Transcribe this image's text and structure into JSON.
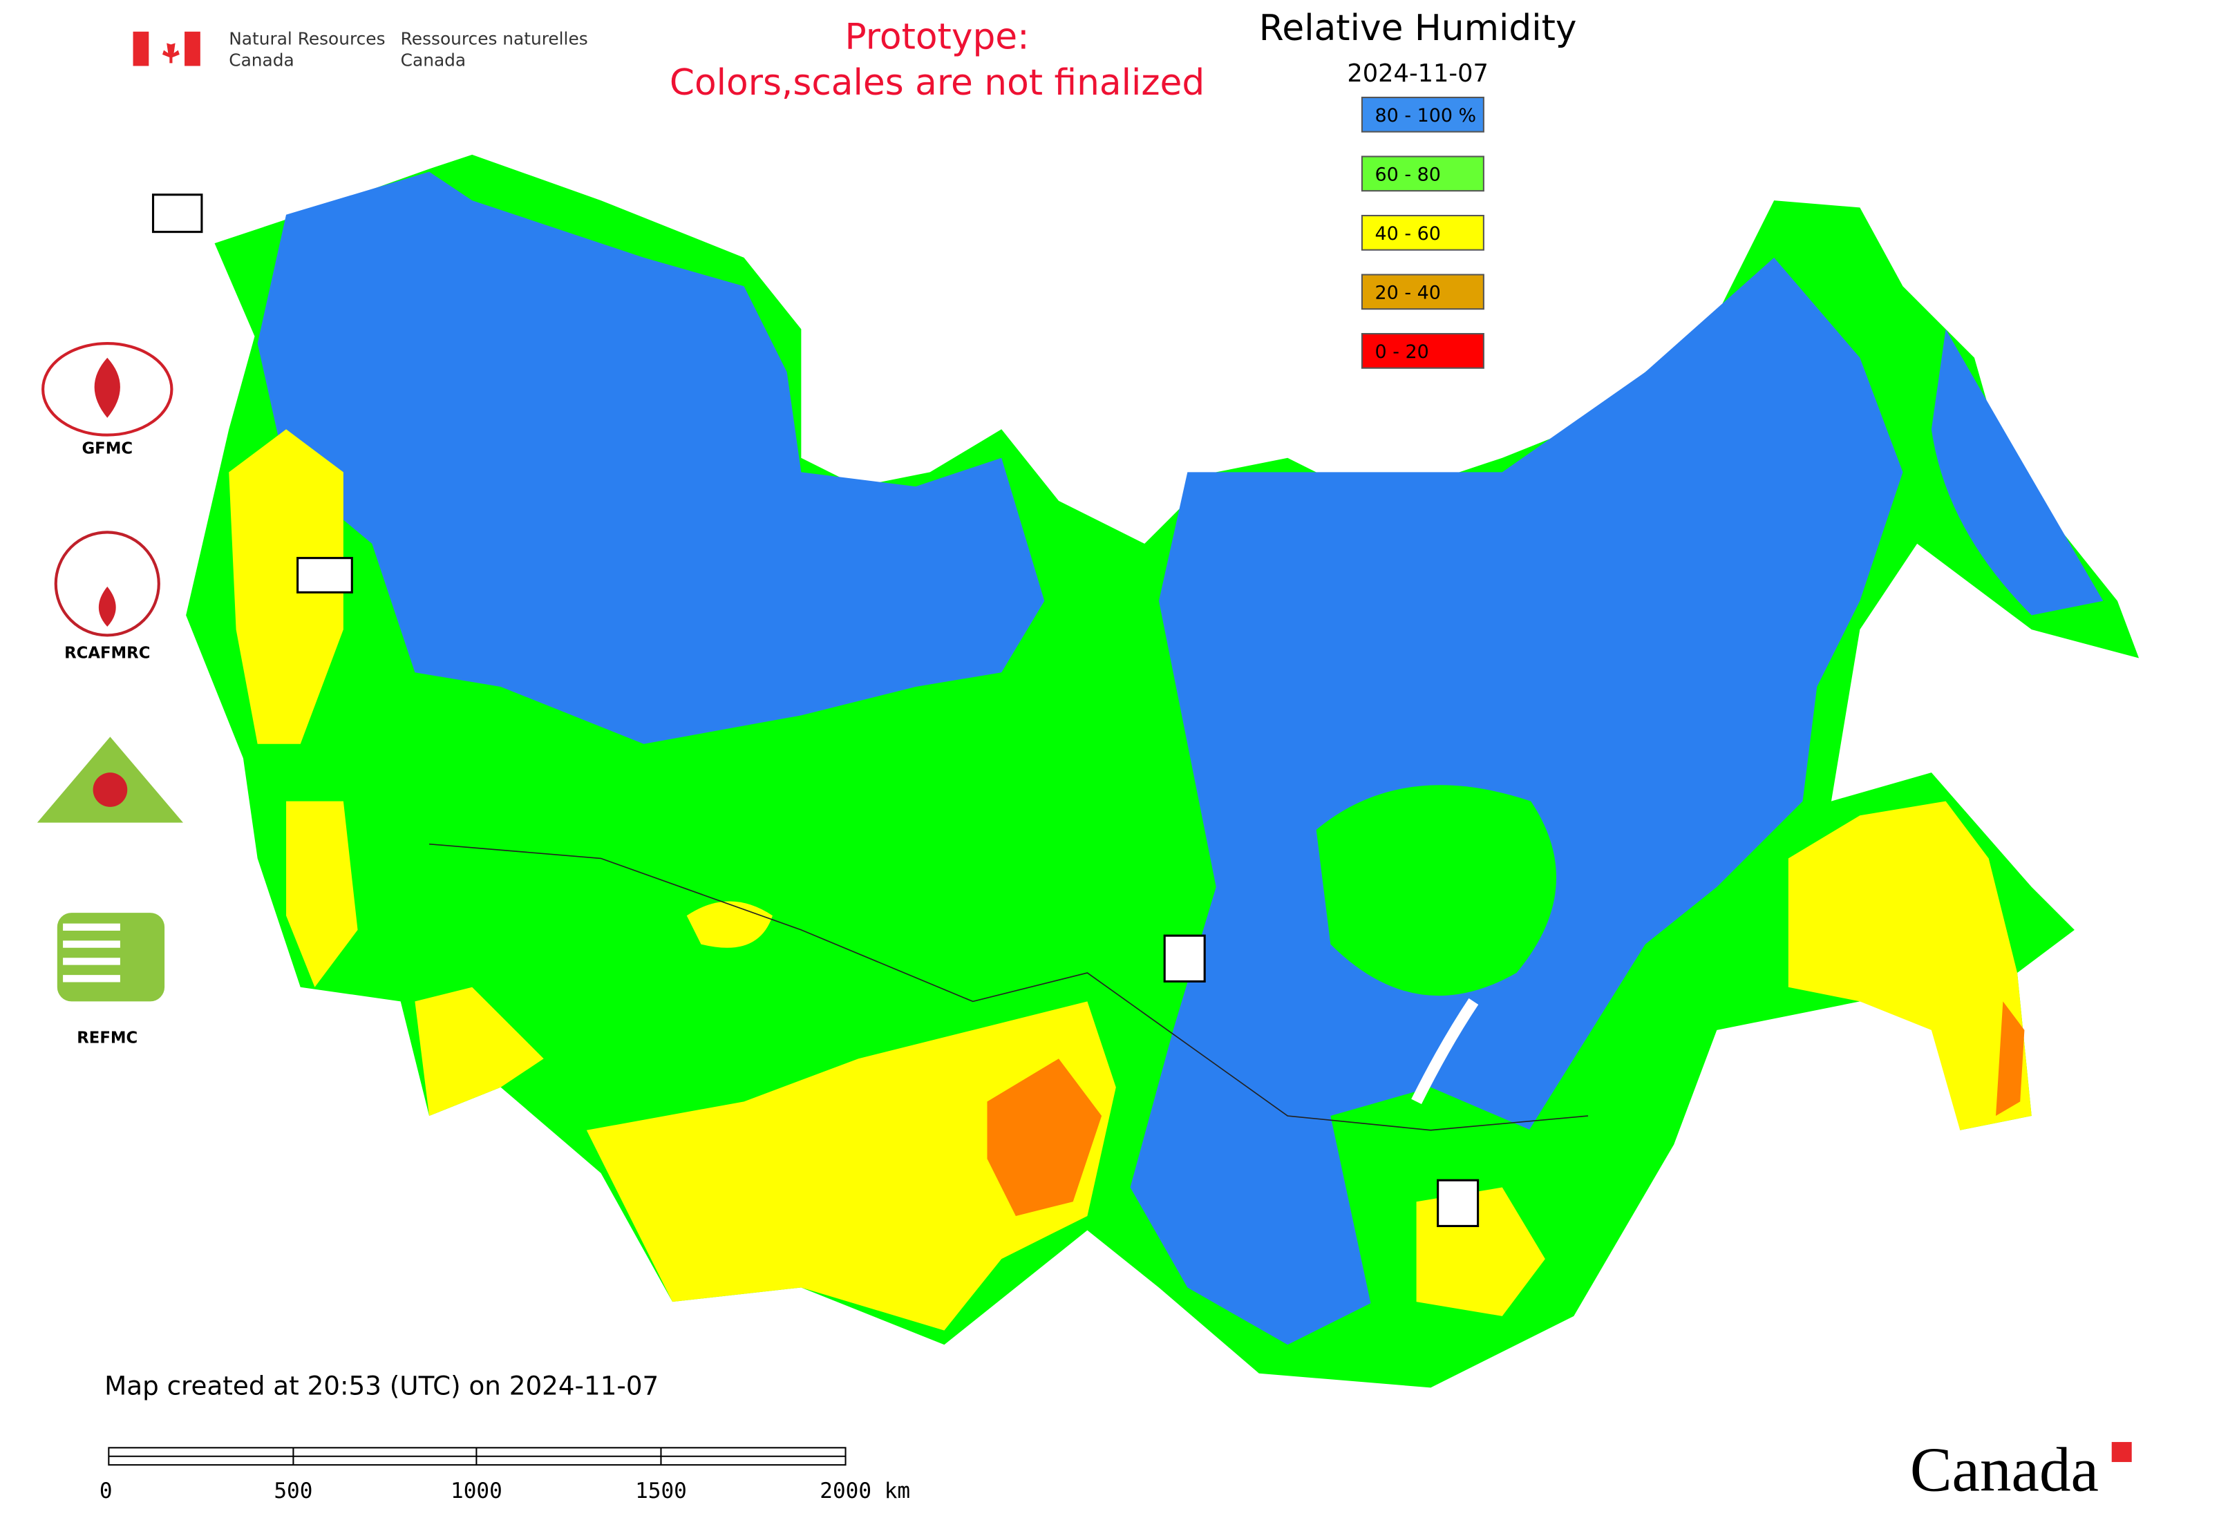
{
  "header": {
    "nrcan_en_1": "Natural Resources",
    "nrcan_en_2": "Canada",
    "nrcan_fr_1": "Ressources naturelles",
    "nrcan_fr_2": "Canada"
  },
  "notice": {
    "line1": "Prototype:",
    "line2": "Colors,scales are not finalized"
  },
  "title": "Relative Humidity",
  "date": "2024-11-07",
  "legend": [
    {
      "label": "80 - 100 %",
      "color": "#3a8ef0"
    },
    {
      "label": "60 - 80",
      "color": "#66ff33"
    },
    {
      "label": "40 - 60",
      "color": "#ffff00"
    },
    {
      "label": "20 - 40",
      "color": "#e0a000"
    },
    {
      "label": "0 - 20",
      "color": "#ff0000"
    }
  ],
  "logos": [
    "GFMC",
    "RCAFMRC",
    "REFMC"
  ],
  "footer": {
    "created": "Map created at 20:53 (UTC) on 2024-11-07",
    "wordmark": "Canada"
  },
  "scale_bar": {
    "labels": [
      "0",
      "500",
      "1000",
      "1500",
      "2000 km"
    ]
  }
}
